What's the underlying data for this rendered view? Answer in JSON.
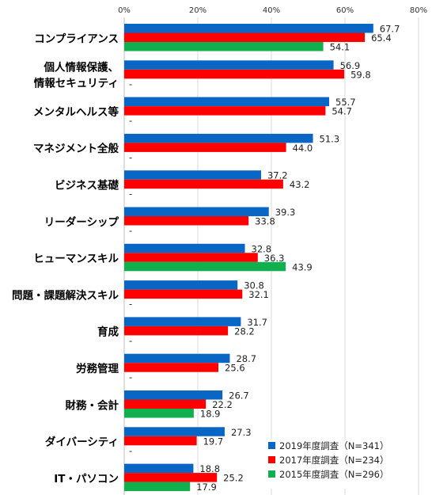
{
  "chart_data": {
    "type": "bar",
    "orientation": "horizontal",
    "xlim": [
      0,
      80
    ],
    "x_ticks": [
      "0%",
      "20%",
      "40%",
      "60%",
      "80%"
    ],
    "grid": true,
    "legend_position": "bottom-right",
    "categories": [
      [
        "コンプライアンス"
      ],
      [
        "個人情報保護、",
        "情報セキュリティ"
      ],
      [
        "メンタルヘルス等"
      ],
      [
        "マネジメント全般"
      ],
      [
        "ビジネス基礎"
      ],
      [
        "リーダーシップ"
      ],
      [
        "ヒューマンスキル"
      ],
      [
        "問題・課題解決スキル"
      ],
      [
        "育成"
      ],
      [
        "労務管理"
      ],
      [
        "財務・会計"
      ],
      [
        "ダイバーシティ"
      ],
      [
        "IT・パソコン"
      ]
    ],
    "series": [
      {
        "name": "2019年度調査（N=341）",
        "color": "#0a66c4",
        "values": [
          67.7,
          56.9,
          55.7,
          51.3,
          37.2,
          39.3,
          32.8,
          30.8,
          31.7,
          28.7,
          26.7,
          27.3,
          18.8
        ]
      },
      {
        "name": "2017年度調査（N=234）",
        "color": "#ff0000",
        "values": [
          65.4,
          59.8,
          54.7,
          44.0,
          43.2,
          33.8,
          36.3,
          32.1,
          28.2,
          25.6,
          22.2,
          19.7,
          25.2
        ]
      },
      {
        "name": "2015年度調査（N=296）",
        "color": "#11b04f",
        "values": [
          54.1,
          null,
          null,
          null,
          null,
          null,
          43.9,
          null,
          null,
          null,
          18.9,
          null,
          17.9
        ]
      }
    ],
    "missing_label": "-"
  }
}
